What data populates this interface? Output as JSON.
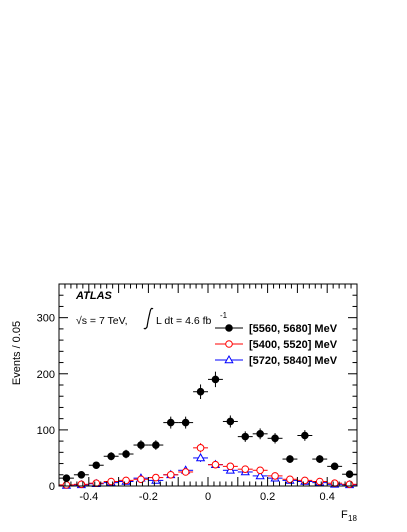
{
  "chart_data": {
    "type": "scatter",
    "experiment_label": "ATLAS",
    "info_text_prefix": "√s = 7 TeV,",
    "info_text_lumi": "L dt = 4.6 fb",
    "info_text_lumi_exp": "-1",
    "xlabel": "F",
    "xlabel_subscript": "18",
    "ylabel": "Events / 0.05",
    "xlim": [
      -0.5,
      0.5
    ],
    "ylim": [
      0,
      360
    ],
    "xticks": [
      -0.4,
      -0.2,
      0,
      0.2,
      0.4
    ],
    "xtick_labels": [
      "-0.4",
      "-0.2",
      "0",
      "0.2",
      "0.4"
    ],
    "yticks": [
      0,
      100,
      200,
      300
    ],
    "ytick_labels": [
      "0",
      "100",
      "200",
      "300"
    ],
    "bin_width": 0.05,
    "legend_position": "top-right",
    "grid": false,
    "series": [
      {
        "name": "[5560, 5680] MeV",
        "color": "#000000",
        "marker": "filled-circle",
        "x": [
          -0.475,
          -0.425,
          -0.375,
          -0.325,
          -0.275,
          -0.225,
          -0.175,
          -0.125,
          -0.075,
          -0.025,
          0.025,
          0.075,
          0.125,
          0.175,
          0.225,
          0.275,
          0.325,
          0.375,
          0.425,
          0.475
        ],
        "y": [
          14,
          20,
          37,
          53,
          57,
          73,
          73,
          113,
          113,
          168,
          190,
          115,
          88,
          93,
          85,
          48,
          90,
          48,
          35,
          21
        ]
      },
      {
        "name": "[5400, 5520] MeV",
        "color": "#ff0000",
        "marker": "open-circle",
        "x": [
          -0.475,
          -0.425,
          -0.375,
          -0.325,
          -0.275,
          -0.225,
          -0.175,
          -0.125,
          -0.075,
          -0.025,
          0.025,
          0.075,
          0.125,
          0.175,
          0.225,
          0.275,
          0.325,
          0.375,
          0.425,
          0.475
        ],
        "y": [
          2,
          3,
          5,
          8,
          10,
          12,
          15,
          20,
          25,
          68,
          38,
          35,
          30,
          28,
          18,
          12,
          10,
          8,
          5,
          3
        ]
      },
      {
        "name": "[5720, 5840] MeV",
        "color": "#0000ff",
        "marker": "open-triangle",
        "x": [
          -0.475,
          -0.425,
          -0.375,
          -0.325,
          -0.275,
          -0.225,
          -0.175,
          -0.125,
          -0.075,
          -0.025,
          0.025,
          0.075,
          0.125,
          0.175,
          0.225,
          0.275,
          0.325,
          0.375,
          0.425,
          0.475
        ],
        "y": [
          1,
          2,
          4,
          6,
          8,
          14,
          10,
          20,
          28,
          50,
          38,
          28,
          25,
          18,
          14,
          10,
          8,
          6,
          3,
          2
        ]
      }
    ]
  }
}
